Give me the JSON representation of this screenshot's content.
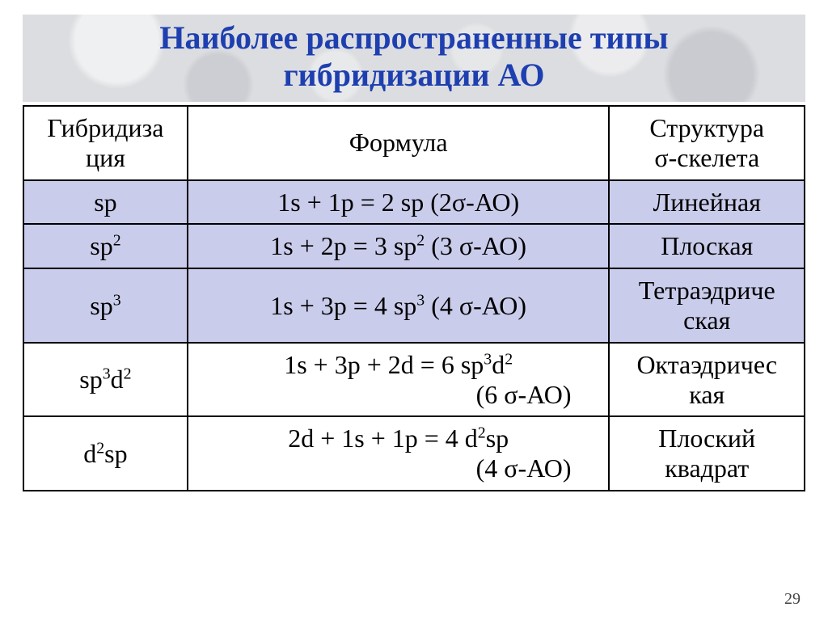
{
  "title_line1": "Наиболее распространенные типы",
  "title_line2": "гибридизации АО",
  "headers": {
    "col1_l1": "Гибридиза",
    "col1_l2": "ция",
    "col2": "Формула",
    "col3_l1": "Структура",
    "col3_l2": "σ-скелета"
  },
  "rows": {
    "r1": {
      "hyb": "sp",
      "formula": "1s + 1p = 2 sp (2σ-АО)",
      "struct": "Линейная"
    },
    "r2": {
      "hyb_pre": "sp",
      "hyb_sup": "2",
      "f_a": "1s + 2p = 3 sp",
      "f_sup": "2",
      "f_b": " (3 σ-АО)",
      "struct": "Плоская"
    },
    "r3": {
      "hyb_pre": "sp",
      "hyb_sup": "3",
      "f_a": "1s + 3p = 4 sp",
      "f_sup": "3",
      "f_b": " (4 σ-АО)",
      "struct_l1": "Тетраэдриче",
      "struct_l2": "ская"
    },
    "r4": {
      "hyb_a": "sp",
      "hyb_s1": "3",
      "hyb_b": "d",
      "hyb_s2": "2",
      "f_a": "1s + 3p + 2d = 6 sp",
      "f_s1": "3",
      "f_b": "d",
      "f_s2": "2",
      "f_line2": "(6 σ-АО)",
      "struct_l1": "Октаэдричес",
      "struct_l2": "кая"
    },
    "r5": {
      "hyb_a": "d",
      "hyb_s1": "2",
      "hyb_b": "sp",
      "f_a": "2d + 1s + 1p = 4 d",
      "f_s1": "2",
      "f_b": "sp",
      "f_line2": "(4 σ-АО)",
      "struct_l1": "Плоский",
      "struct_l2": "квадрат"
    }
  },
  "slide_number": "29",
  "colors": {
    "title_text": "#1e3fb0",
    "title_bg": "#dcdde0",
    "row_alt_bg": "#cacceb",
    "border": "#000000",
    "text": "#000000",
    "page_bg": "#ffffff"
  },
  "typography": {
    "title_fontsize_pt": 30,
    "cell_fontsize_pt": 24,
    "font_family": "Times New Roman"
  },
  "table": {
    "type": "table",
    "column_widths_pct": [
      21,
      54,
      25
    ],
    "alt_row_indices": [
      1,
      2,
      3
    ]
  }
}
